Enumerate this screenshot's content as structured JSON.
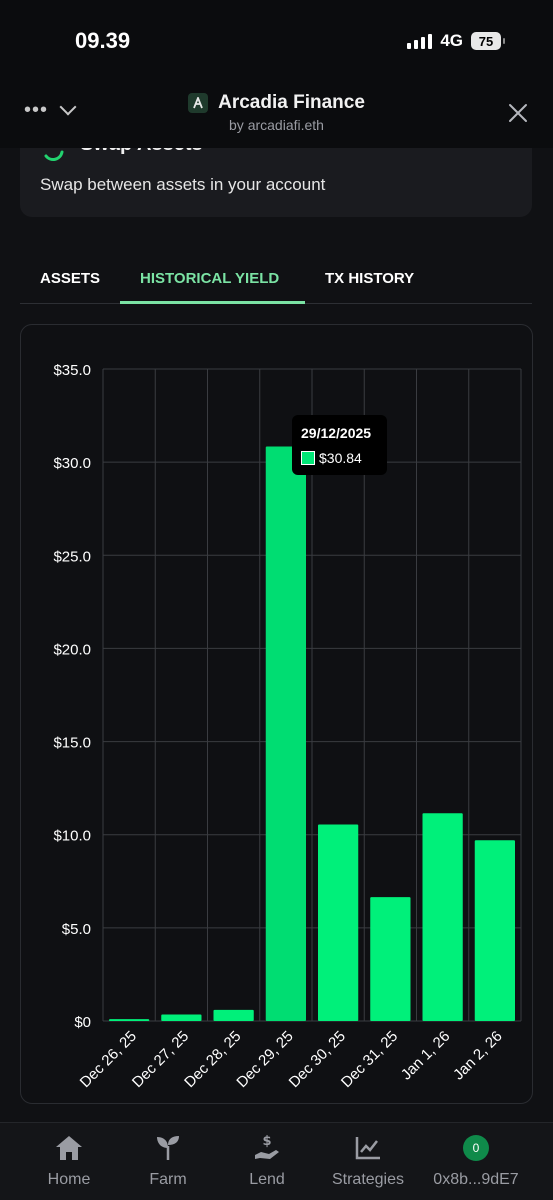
{
  "status": {
    "time": "09.39",
    "network": "4G",
    "battery": "75"
  },
  "header": {
    "title": "Arcadia Finance",
    "subtitle": "by arcadiafi.eth",
    "more_icon": "ellipsis-icon",
    "close_icon": "close-icon"
  },
  "swap_card": {
    "title": "Swap Assets",
    "description": "Swap between assets in your account"
  },
  "tabs": [
    {
      "label": "ASSETS",
      "active": false
    },
    {
      "label": "HISTORICAL YIELD",
      "active": true
    },
    {
      "label": "TX HISTORY",
      "active": false
    }
  ],
  "tooltip": {
    "date": "29/12/2025",
    "value": "$30.84"
  },
  "chart_data": {
    "type": "bar",
    "categories": [
      "Dec 26, 25",
      "Dec 27, 25",
      "Dec 28, 25",
      "Dec 29, 25",
      "Dec 30, 25",
      "Dec 31, 25",
      "Jan 1, 26",
      "Jan 2, 26"
    ],
    "values": [
      0.1,
      0.35,
      0.6,
      30.84,
      10.55,
      6.65,
      11.15,
      9.7
    ],
    "ylim": [
      0,
      35
    ],
    "yticks": [
      "$0",
      "$5.0",
      "$10.0",
      "$15.0",
      "$20.0",
      "$25.0",
      "$30.0",
      "$35.0"
    ],
    "highlighted_index": 3,
    "color": "#00f07a",
    "highlight_color": "#00dd72",
    "grid": true
  },
  "bottom_nav": [
    {
      "label": "Home",
      "icon": "home-icon"
    },
    {
      "label": "Farm",
      "icon": "sprout-icon"
    },
    {
      "label": "Lend",
      "icon": "hand-dollar-icon"
    },
    {
      "label": "Strategies",
      "icon": "chart-line-icon"
    },
    {
      "label": "0x8b...9dE7",
      "icon": "account-badge",
      "badge": "0"
    }
  ]
}
